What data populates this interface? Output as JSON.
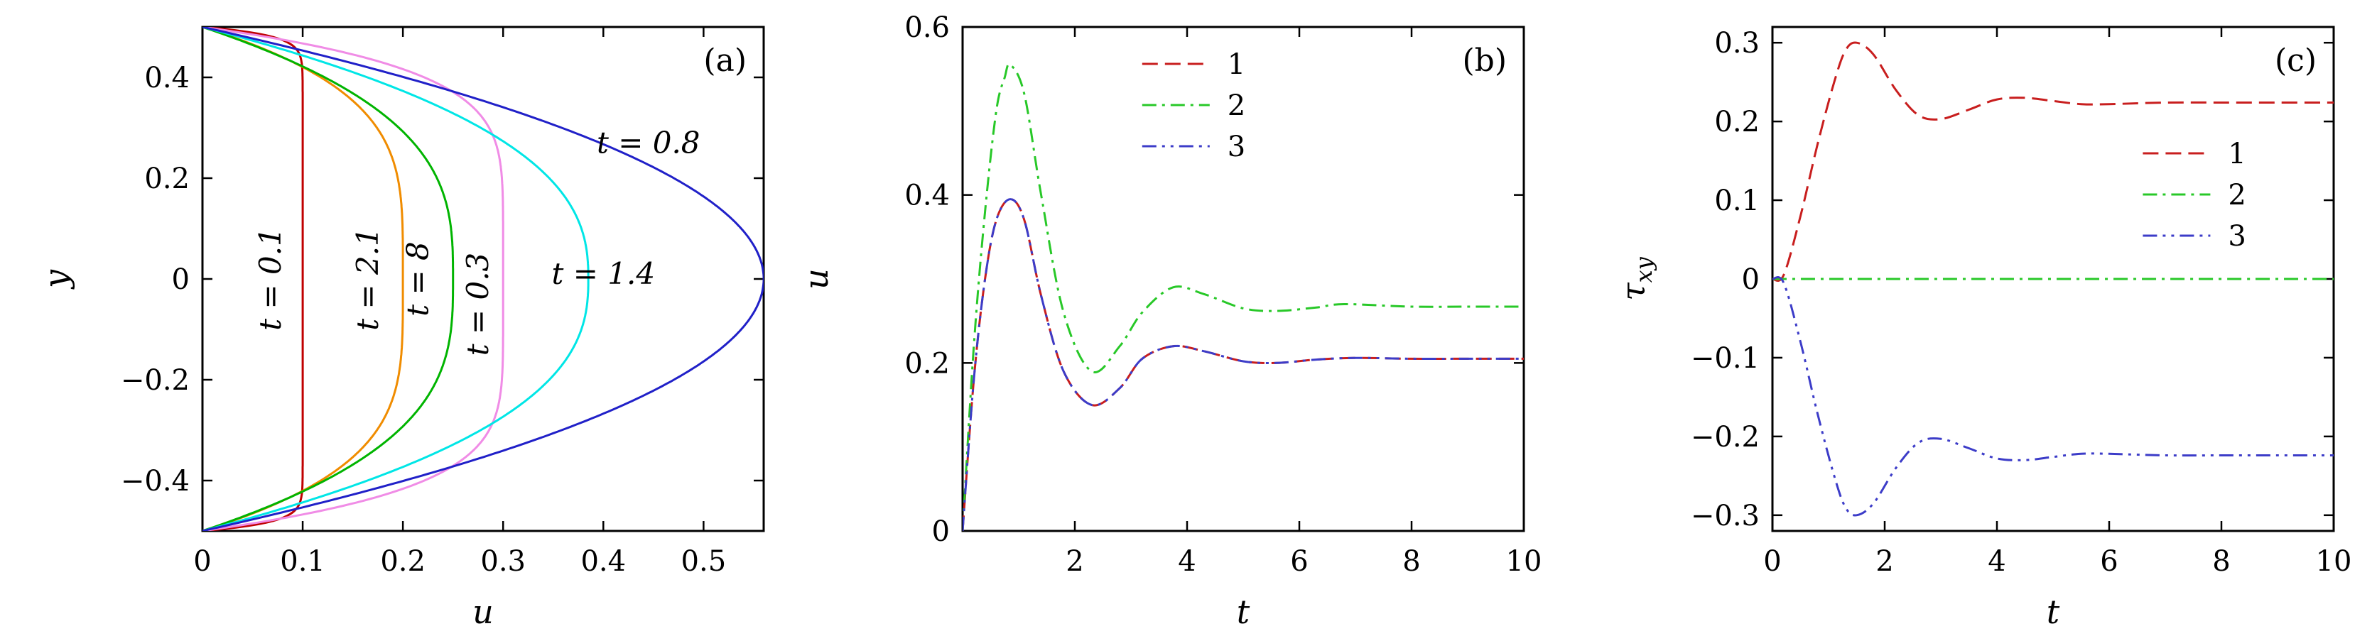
{
  "chart_data": [
    {
      "type": "line",
      "panel_label": "(a)",
      "xlabel": "u",
      "ylabel": "y",
      "xlim": [
        0,
        0.56
      ],
      "ylim": [
        -0.5,
        0.5
      ],
      "x_ticks": [
        0,
        0.1,
        0.2,
        0.3,
        0.4,
        0.5
      ],
      "x_tick_labels": [
        "0",
        "0.1",
        "0.2",
        "0.3",
        "0.4",
        "0.5"
      ],
      "y_ticks": [
        -0.4,
        -0.2,
        0,
        0.2,
        0.4
      ],
      "y_tick_labels": [
        "−0.4",
        "−0.2",
        "0",
        "0.2",
        "0.4"
      ],
      "grid": false,
      "series": [
        {
          "label": "t = 0.1",
          "color": "#c00000",
          "style": "solid",
          "u_max": 0.1,
          "profile_exponent": 30
        },
        {
          "label": "t = 2.1",
          "color": "#f08c00",
          "style": "solid",
          "u_max": 0.2,
          "profile_exponent": 4
        },
        {
          "label": "t = 8",
          "color": "#00b400",
          "style": "solid",
          "u_max": 0.25,
          "profile_exponent": 3
        },
        {
          "label": "t = 0.3",
          "color": "#f08ce6",
          "style": "solid",
          "u_max": 0.3,
          "profile_exponent": 6
        },
        {
          "label": "t = 1.4",
          "color": "#00e6e6",
          "style": "solid",
          "u_max": 0.385,
          "profile_exponent": 2.5
        },
        {
          "label": "t = 0.8",
          "color": "#2020c8",
          "style": "solid",
          "u_max": 0.56,
          "profile_exponent": 2
        }
      ]
    },
    {
      "type": "line",
      "panel_label": "(b)",
      "xlabel": "t",
      "ylabel": "u",
      "xlim": [
        0,
        10
      ],
      "ylim": [
        0,
        0.6
      ],
      "x_ticks": [
        2,
        4,
        6,
        8,
        10
      ],
      "x_tick_labels": [
        "2",
        "4",
        "6",
        "8",
        "10"
      ],
      "y_ticks": [
        0,
        0.2,
        0.4,
        0.6
      ],
      "y_tick_labels": [
        "0",
        "0.2",
        "0.4",
        "0.6"
      ],
      "grid": false,
      "legend": {
        "placement": "top-right",
        "entries": [
          "1",
          "2",
          "3"
        ]
      },
      "series": [
        {
          "name": "1",
          "color": "#c81e1e",
          "style": "dashed",
          "t": [
            0,
            0.2,
            0.4,
            0.6,
            0.85,
            1.1,
            1.4,
            1.8,
            2.3,
            2.8,
            3.2,
            3.75,
            4.3,
            5.0,
            5.6,
            6.3,
            7.0,
            8.0,
            9.0,
            10.0
          ],
          "values": [
            0,
            0.18,
            0.3,
            0.37,
            0.395,
            0.37,
            0.28,
            0.19,
            0.15,
            0.17,
            0.205,
            0.22,
            0.214,
            0.202,
            0.2,
            0.204,
            0.206,
            0.205,
            0.205,
            0.205
          ]
        },
        {
          "name": "2",
          "color": "#28c828",
          "style": "dashdot",
          "t": [
            0,
            0.2,
            0.4,
            0.6,
            0.75,
            0.85,
            1.1,
            1.4,
            1.8,
            2.3,
            2.8,
            3.2,
            3.75,
            4.3,
            5.0,
            5.6,
            6.3,
            6.8,
            8.0,
            9.0,
            10.0
          ],
          "values": [
            0,
            0.22,
            0.38,
            0.5,
            0.54,
            0.555,
            0.52,
            0.4,
            0.26,
            0.19,
            0.22,
            0.26,
            0.29,
            0.282,
            0.265,
            0.262,
            0.266,
            0.27,
            0.267,
            0.267,
            0.267
          ]
        },
        {
          "name": "3",
          "color": "#3c3cc8",
          "style": "dashdotdot",
          "t": [
            0,
            0.2,
            0.4,
            0.6,
            0.85,
            1.1,
            1.4,
            1.8,
            2.3,
            2.8,
            3.2,
            3.75,
            4.3,
            5.0,
            5.6,
            6.3,
            7.0,
            8.0,
            9.0,
            10.0
          ],
          "values": [
            0,
            0.18,
            0.3,
            0.37,
            0.395,
            0.37,
            0.28,
            0.19,
            0.15,
            0.17,
            0.205,
            0.22,
            0.214,
            0.202,
            0.2,
            0.204,
            0.206,
            0.205,
            0.205,
            0.205
          ]
        }
      ]
    },
    {
      "type": "line",
      "panel_label": "(c)",
      "xlabel": "t",
      "ylabel": "τxy",
      "ylabel_main": "τ",
      "ylabel_sub": "xy",
      "xlim": [
        0,
        10
      ],
      "ylim": [
        -0.32,
        0.32
      ],
      "x_ticks": [
        0,
        2,
        4,
        6,
        8,
        10
      ],
      "x_tick_labels": [
        "0",
        "2",
        "4",
        "6",
        "8",
        "10"
      ],
      "y_ticks": [
        -0.3,
        -0.2,
        -0.1,
        0,
        0.1,
        0.2,
        0.3
      ],
      "y_tick_labels": [
        "−0.3",
        "−0.2",
        "−0.1",
        "0",
        "0.1",
        "0.2",
        "0.3"
      ],
      "grid": false,
      "legend": {
        "placement": "center-right",
        "entries": [
          "1",
          "2",
          "3"
        ]
      },
      "series": [
        {
          "name": "1",
          "color": "#c81e1e",
          "style": "dashed",
          "t": [
            0,
            0.2,
            0.5,
            0.8,
            1.1,
            1.3,
            1.5,
            1.8,
            2.2,
            2.6,
            3.0,
            3.5,
            4.0,
            4.5,
            5.0,
            5.5,
            6.0,
            7.0,
            8.0,
            9.0,
            10.0
          ],
          "values": [
            0,
            0.005,
            0.08,
            0.17,
            0.25,
            0.29,
            0.3,
            0.285,
            0.24,
            0.208,
            0.203,
            0.215,
            0.228,
            0.23,
            0.226,
            0.222,
            0.222,
            0.224,
            0.224,
            0.224,
            0.224
          ]
        },
        {
          "name": "2",
          "color": "#28c828",
          "style": "dashdot",
          "t": [
            0,
            10
          ],
          "values": [
            0,
            0
          ]
        },
        {
          "name": "3",
          "color": "#3c3cc8",
          "style": "dashdotdot",
          "t": [
            0,
            0.2,
            0.5,
            0.8,
            1.1,
            1.3,
            1.5,
            1.8,
            2.2,
            2.6,
            3.0,
            3.5,
            4.0,
            4.5,
            5.0,
            5.5,
            6.0,
            7.0,
            8.0,
            9.0,
            10.0
          ],
          "values": [
            0,
            -0.005,
            -0.08,
            -0.17,
            -0.25,
            -0.29,
            -0.3,
            -0.285,
            -0.24,
            -0.208,
            -0.203,
            -0.215,
            -0.228,
            -0.23,
            -0.226,
            -0.222,
            -0.222,
            -0.224,
            -0.224,
            -0.224,
            -0.224
          ]
        }
      ]
    }
  ]
}
